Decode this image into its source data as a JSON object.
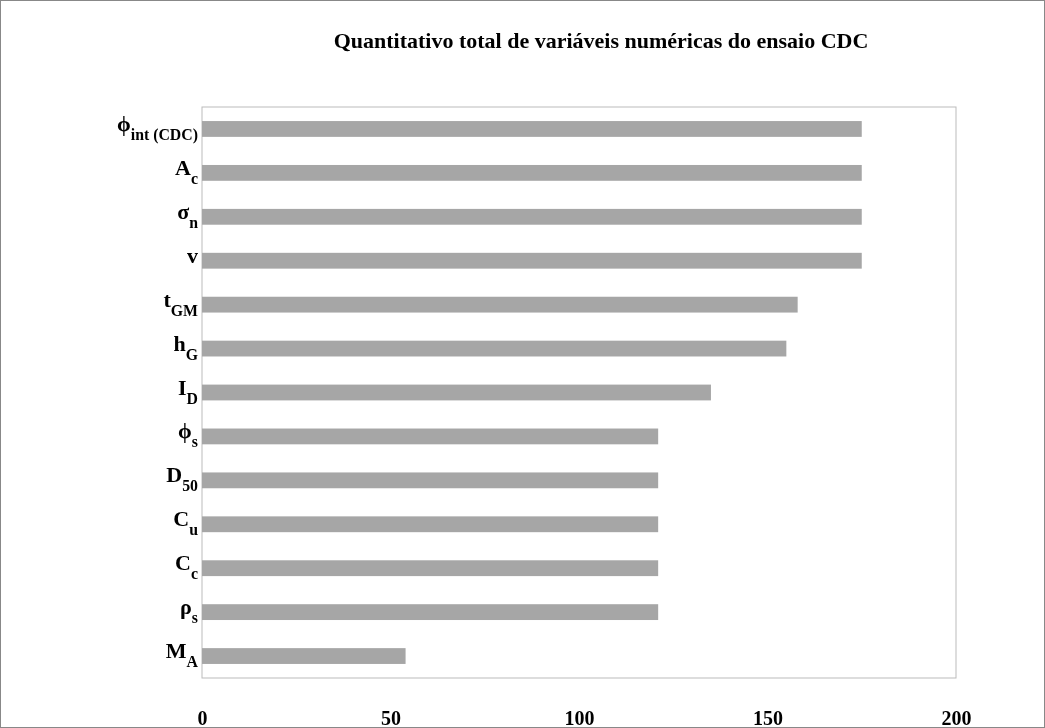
{
  "chart_data": {
    "type": "bar",
    "orientation": "horizontal",
    "title": "Quantitativo total de variáveis numéricas do ensaio CDC",
    "categories": [
      "ϕ$_{int (CDC)}$",
      "A$_{c}$",
      "σ$_{n}$",
      "v",
      "t$_{GM}$",
      "h$_{G}$",
      "I$_{D}$",
      "ϕ$_{s}$",
      "D$_{50}$",
      "C$_{u}$",
      "C$_{c}$",
      "ρ$_{s}$",
      "M$_{A}$"
    ],
    "values": [
      175,
      175,
      175,
      175,
      158,
      155,
      135,
      121,
      121,
      121,
      121,
      121,
      54
    ],
    "color": "#a6a6a6",
    "xlim": [
      0,
      200
    ],
    "xticks": [
      0,
      50,
      100,
      150,
      200
    ],
    "grid": false
  }
}
